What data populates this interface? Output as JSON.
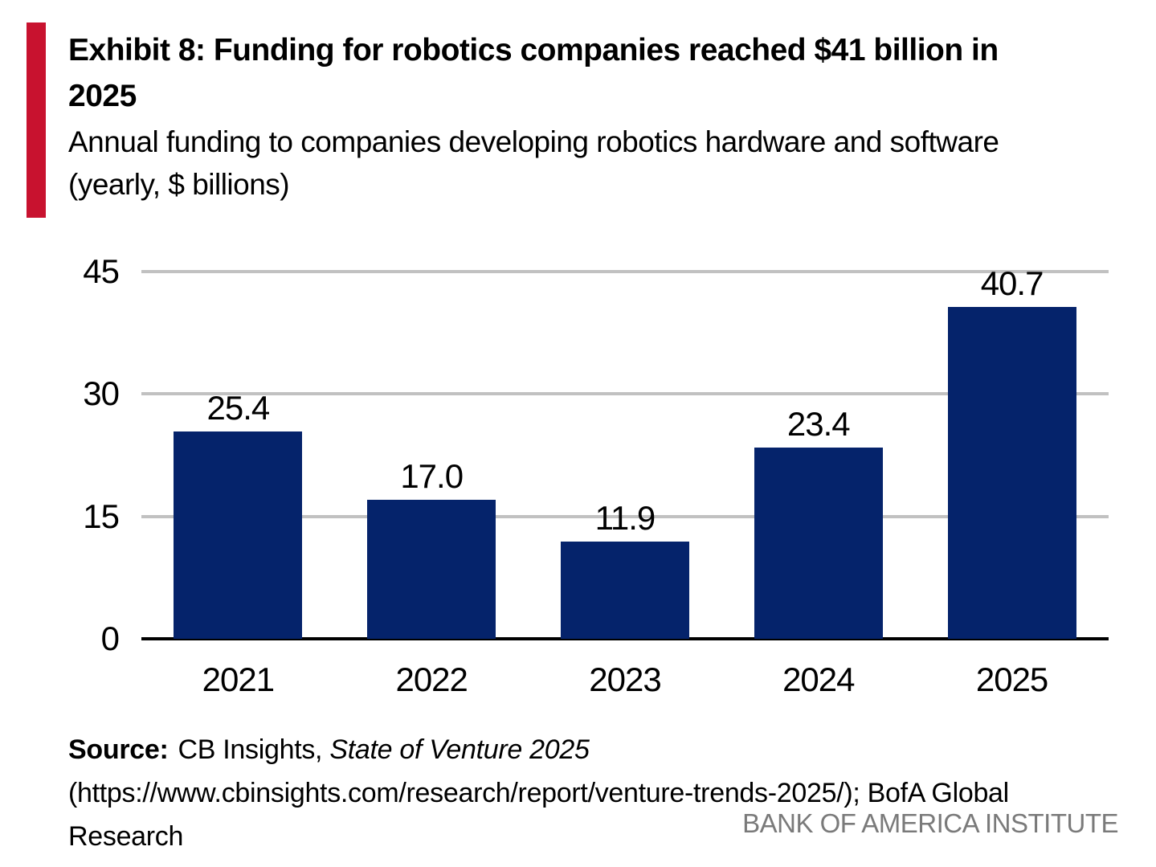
{
  "header": {
    "accent_color": "#C8122F",
    "title_line1": "Exhibit 8: Funding for robotics companies reached $41 billion in",
    "title_line2": "2025",
    "subtitle_line1": "Annual funding to companies developing robotics hardware and software",
    "subtitle_line2": "(yearly, $ billions)"
  },
  "chart_data": {
    "type": "bar",
    "title": "Exhibit 8: Funding for robotics companies reached $41 billion in 2025",
    "subtitle": "Annual funding to companies developing robotics hardware and software (yearly, $ billions)",
    "categories": [
      "2021",
      "2022",
      "2023",
      "2024",
      "2025"
    ],
    "values": [
      25.4,
      17.0,
      11.9,
      23.4,
      40.7
    ],
    "value_labels": [
      "25.4",
      "17.0",
      "11.9",
      "23.4",
      "40.7"
    ],
    "xlabel": "",
    "ylabel": "",
    "ylim": [
      0,
      45
    ],
    "yticks": [
      0,
      15,
      30,
      45
    ],
    "grid": "horizontal-gridlines-on",
    "legend": "none",
    "bar_color": "#05236B",
    "gridline_color": "#C1C1C1",
    "axis_color": "#000000"
  },
  "footer": {
    "source_label": "Source:",
    "source_publisher": "CB Insights,",
    "source_report": "State of Venture 2025",
    "source_line2": "(https://www.cbinsights.com/research/report/venture-trends-2025/); BofA Global Research",
    "institute": "BANK OF AMERICA INSTITUTE"
  }
}
